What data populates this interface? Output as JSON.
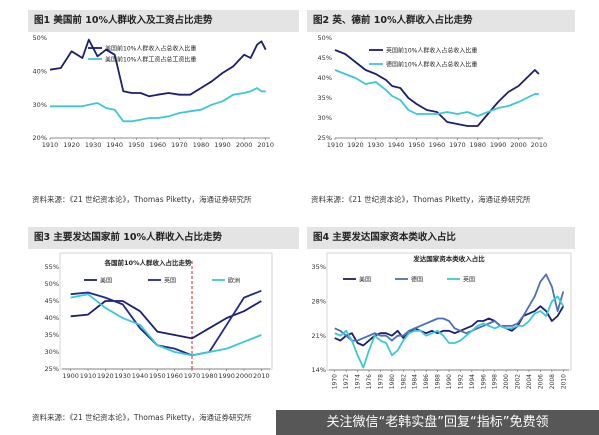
{
  "watermark": "关注微信“老韩实盘”回复“指标”免费领",
  "chart_data": [
    {
      "type": "line",
      "header": "图1  美国前 10%人群收入及工资占比走势",
      "source": "资料来源：《21 世纪资本论》，Thomas Piketty，海通证券研究所",
      "x": [
        1910,
        1915,
        1920,
        1925,
        1928,
        1932,
        1936,
        1940,
        1944,
        1948,
        1952,
        1956,
        1960,
        1965,
        1970,
        1975,
        1980,
        1985,
        1990,
        1995,
        2000,
        2003,
        2006,
        2008,
        2010
      ],
      "series": [
        {
          "name": "美国前10%人群收入占总收入比重",
          "color": "#1b1f6e",
          "values": [
            40.5,
            41,
            46,
            44,
            49.5,
            44.5,
            46.5,
            45,
            34,
            33.5,
            33.5,
            32.5,
            33,
            33.5,
            33,
            33,
            35,
            37,
            39.5,
            41.5,
            45,
            44,
            48,
            49,
            46.5
          ]
        },
        {
          "name": "美国前10%人群工资占总工资比重",
          "color": "#3cc7d6",
          "values": [
            29.5,
            29.5,
            29.5,
            29.5,
            30,
            30.5,
            29,
            28.5,
            25,
            25,
            25.5,
            26,
            26,
            26.5,
            27.5,
            28,
            28.5,
            30,
            31,
            33,
            33.5,
            34,
            35,
            34,
            34
          ]
        }
      ],
      "yticks": [
        "50%",
        "40%",
        "30%",
        "20%"
      ],
      "ylim": [
        20,
        50
      ],
      "xticks": [
        "1910",
        "1920",
        "1930",
        "1940",
        "1950",
        "1960",
        "1970",
        "1980",
        "1990",
        "2000",
        "2010"
      ],
      "xlim": [
        1910,
        2012
      ]
    },
    {
      "type": "line",
      "header": "图2  英、德前 10%人群收入占比走势",
      "source": "资料来源：《21 世纪资本论》，Thomas Piketty，海通证券研究所",
      "x": [
        1910,
        1915,
        1920,
        1925,
        1930,
        1935,
        1938,
        1942,
        1946,
        1950,
        1955,
        1960,
        1965,
        1970,
        1975,
        1980,
        1985,
        1990,
        1995,
        2000,
        2004,
        2008,
        2010
      ],
      "series": [
        {
          "name": "英国前10%人群收入占总收入比重",
          "color": "#1b1f6e",
          "values": [
            47,
            46,
            44,
            42,
            41,
            39.5,
            38,
            37.5,
            35,
            33.5,
            32,
            31.5,
            29,
            28.5,
            28,
            28,
            31,
            34,
            36.5,
            38,
            40,
            42,
            41
          ]
        },
        {
          "name": "德国前10%人群收入占总收入比重",
          "color": "#3cc7d6",
          "values": [
            42,
            41,
            40,
            38.5,
            39,
            37,
            35.5,
            34.5,
            32,
            31,
            31,
            31,
            31.5,
            31,
            31.5,
            30.5,
            31.5,
            32.5,
            33,
            34,
            35,
            36,
            36
          ]
        }
      ],
      "yticks": [
        "50%",
        "45%",
        "40%",
        "35%",
        "30%",
        "25%"
      ],
      "ylim": [
        25,
        50
      ],
      "xticks": [
        "1910",
        "1920",
        "1930",
        "1940",
        "1950",
        "1960",
        "1970",
        "1980",
        "1990",
        "2000",
        "2010"
      ],
      "xlim": [
        1910,
        2012
      ]
    },
    {
      "type": "line",
      "header": "图3  主要发达国家前 10%人群收入占比走势",
      "title": "各国前10%人群收入占比走势",
      "source": "资料来源：《21 世纪资本论》，Thomas Piketty，海通证券研究所",
      "x": [
        1900,
        1910,
        1920,
        1930,
        1940,
        1950,
        1960,
        1970,
        1980,
        1990,
        2000,
        2010
      ],
      "series": [
        {
          "name": "美国",
          "color": "#1b1f6e",
          "values": [
            40.5,
            41,
            45,
            45,
            42,
            36,
            35,
            34,
            37,
            40,
            42,
            45
          ]
        },
        {
          "name": "英国",
          "color": "#1e2a8c",
          "values": [
            47,
            47.5,
            46,
            44,
            37,
            32,
            31,
            29,
            30,
            38,
            46,
            48
          ]
        },
        {
          "name": "欧洲",
          "color": "#3cc7d6",
          "values": [
            46,
            47,
            43,
            40,
            38,
            32,
            30,
            29,
            30,
            31,
            33,
            35
          ]
        }
      ],
      "marker_year": 1970,
      "yticks": [
        "55%",
        "50%",
        "45%",
        "40%",
        "35%",
        "30%",
        "25%"
      ],
      "ylim": [
        25,
        55
      ],
      "xticks": [
        "1900",
        "1910",
        "1920",
        "1930",
        "1940",
        "1950",
        "1960",
        "1970",
        "1980",
        "1990",
        "2000",
        "2010"
      ],
      "xlim": [
        1895,
        2015
      ]
    },
    {
      "type": "line",
      "header": "图4  主要发达国家资本类收入占比",
      "title": "发达国家资本类收入占比",
      "x": [
        1970,
        1971,
        1972,
        1973,
        1974,
        1975,
        1976,
        1977,
        1978,
        1979,
        1980,
        1981,
        1982,
        1983,
        1984,
        1985,
        1986,
        1987,
        1988,
        1989,
        1990,
        1991,
        1992,
        1993,
        1994,
        1995,
        1996,
        1997,
        1998,
        1999,
        2000,
        2001,
        2002,
        2003,
        2004,
        2005,
        2006,
        2007,
        2008,
        2009,
        2010
      ],
      "series": [
        {
          "name": "美国",
          "color": "#1b1f6e",
          "values": [
            20.5,
            20,
            21,
            21.5,
            19.5,
            19,
            20,
            21,
            21.5,
            21.5,
            21,
            22,
            20.5,
            21.5,
            22.5,
            22,
            21.5,
            22,
            21.5,
            22,
            22,
            21.5,
            22,
            22.5,
            23,
            24,
            24,
            24.5,
            24,
            23,
            22.5,
            22,
            23,
            25,
            25.5,
            26,
            27,
            26,
            24,
            25,
            27
          ]
        },
        {
          "name": "德国",
          "color": "#4d6fb5",
          "values": [
            22.5,
            22,
            21,
            20,
            20,
            20.5,
            21,
            21.5,
            21,
            21,
            20,
            21,
            21,
            22,
            22.5,
            23,
            23.5,
            24,
            24.5,
            24.5,
            24,
            22.5,
            22,
            21.5,
            22,
            22.5,
            23,
            23.5,
            24,
            23,
            23,
            23,
            23.5,
            25,
            27,
            29,
            32,
            33.5,
            31,
            26,
            30
          ]
        },
        {
          "name": "英国",
          "color": "#3cc7d6",
          "values": [
            21.5,
            21,
            22,
            20,
            17,
            14.5,
            18,
            21,
            20,
            19.5,
            17,
            18,
            20,
            21.5,
            22,
            22,
            21,
            21.5,
            22,
            21,
            19.5,
            19.5,
            20,
            21,
            22,
            23,
            23.5,
            23,
            22.5,
            23,
            22.5,
            22.5,
            23,
            23,
            24,
            25.5,
            26,
            25,
            28,
            29,
            27
          ]
        }
      ],
      "yticks": [
        "35%",
        "28%",
        "21%",
        "14%"
      ],
      "ylim": [
        14,
        35
      ],
      "xticks": [
        "1970",
        "1972",
        "1974",
        "1976",
        "1978",
        "1980",
        "1982",
        "1984",
        "1986",
        "1988",
        "1990",
        "1992",
        "1994",
        "1996",
        "1998",
        "2000",
        "2002",
        "2004",
        "2006",
        "2008",
        "2010"
      ],
      "xlim": [
        1969,
        2011
      ]
    }
  ]
}
